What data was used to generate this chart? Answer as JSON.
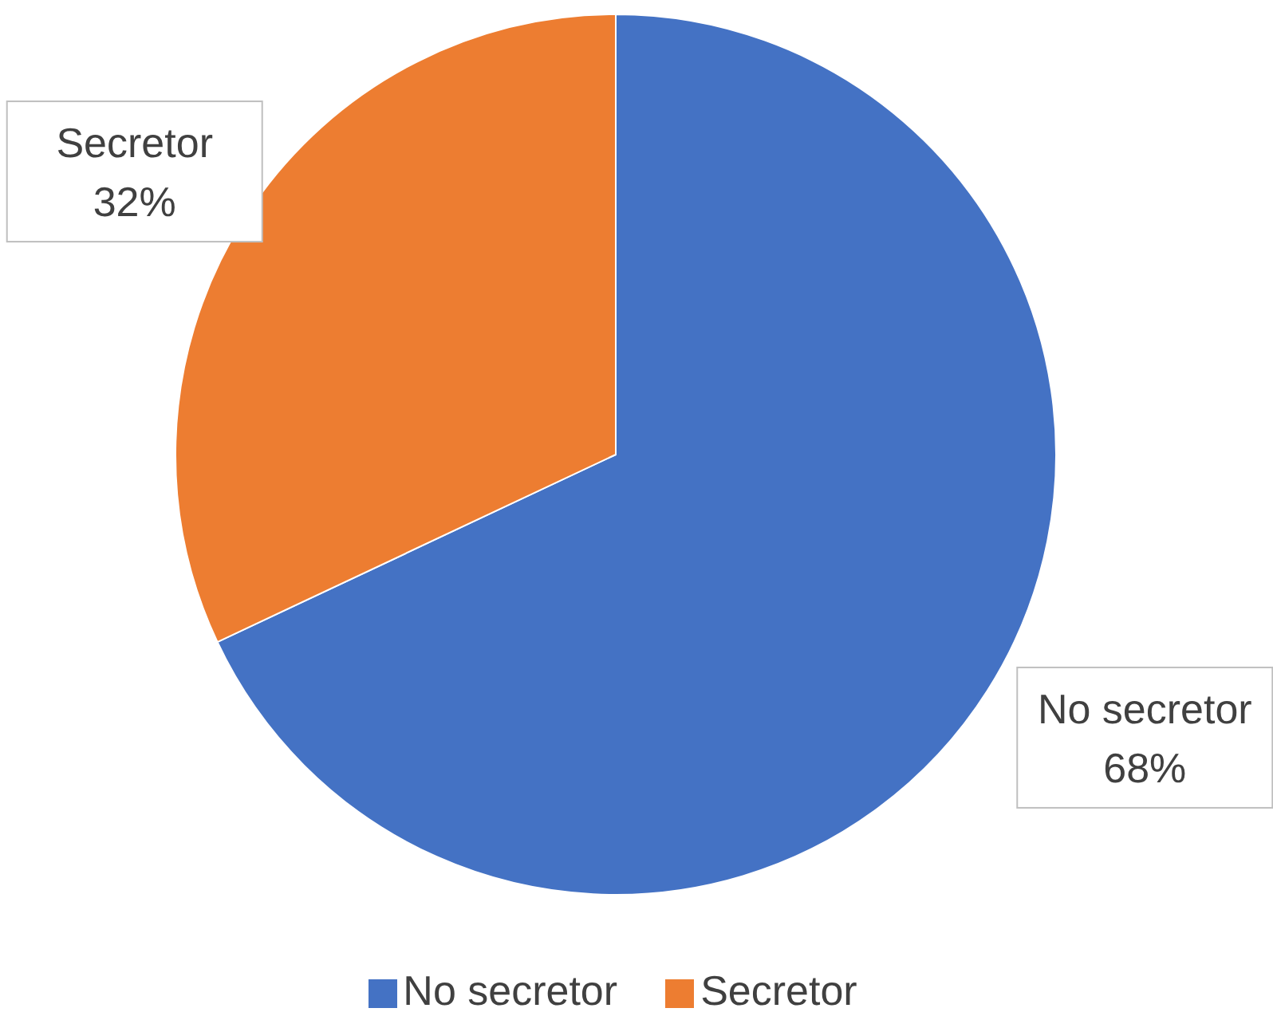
{
  "chart_data": {
    "type": "pie",
    "categories": [
      "No secretor",
      "Secretor"
    ],
    "values": [
      68,
      32
    ],
    "colors": [
      "#4472c4",
      "#ed7d31"
    ],
    "value_labels": [
      "68%",
      "32%"
    ],
    "legend": "bottom"
  }
}
